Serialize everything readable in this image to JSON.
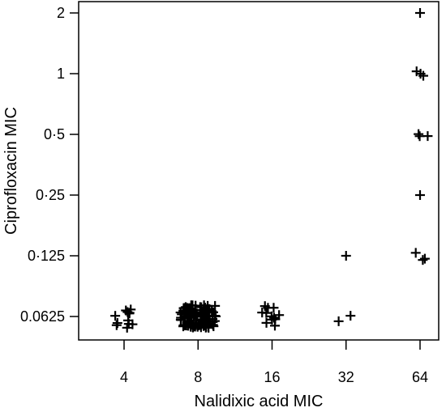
{
  "chart_data": {
    "type": "scatter",
    "marker": "+",
    "xlabel": "Nalidixic acid MIC",
    "ylabel": "Ciprofloxacin MIC",
    "x_scale": "log2",
    "y_scale": "log2",
    "x_ticks": [
      {
        "value": 4,
        "label": "4"
      },
      {
        "value": 8,
        "label": "8"
      },
      {
        "value": 16,
        "label": "16"
      },
      {
        "value": 32,
        "label": "32"
      },
      {
        "value": 64,
        "label": "64"
      }
    ],
    "y_ticks": [
      {
        "value": 0.0625,
        "label": "0.0625"
      },
      {
        "value": 0.125,
        "label": "0·125"
      },
      {
        "value": 0.25,
        "label": "0·25"
      },
      {
        "value": 0.5,
        "label": "0·5"
      },
      {
        "value": 1,
        "label": "1"
      },
      {
        "value": 2,
        "label": "2"
      }
    ],
    "points": [
      {
        "x": 4,
        "y": 0.0625,
        "n": 12
      },
      {
        "x": 8,
        "y": 0.0625,
        "n": 120
      },
      {
        "x": 16,
        "y": 0.0625,
        "n": 12
      },
      {
        "x": 32,
        "y": 0.0625,
        "n": 2
      },
      {
        "x": 32,
        "y": 0.125,
        "n": 1
      },
      {
        "x": 64,
        "y": 0.125,
        "n": 3
      },
      {
        "x": 64,
        "y": 0.25,
        "n": 1
      },
      {
        "x": 64,
        "y": 0.5,
        "n": 3
      },
      {
        "x": 64,
        "y": 1,
        "n": 3
      },
      {
        "x": 64,
        "y": 2,
        "n": 1
      }
    ]
  }
}
